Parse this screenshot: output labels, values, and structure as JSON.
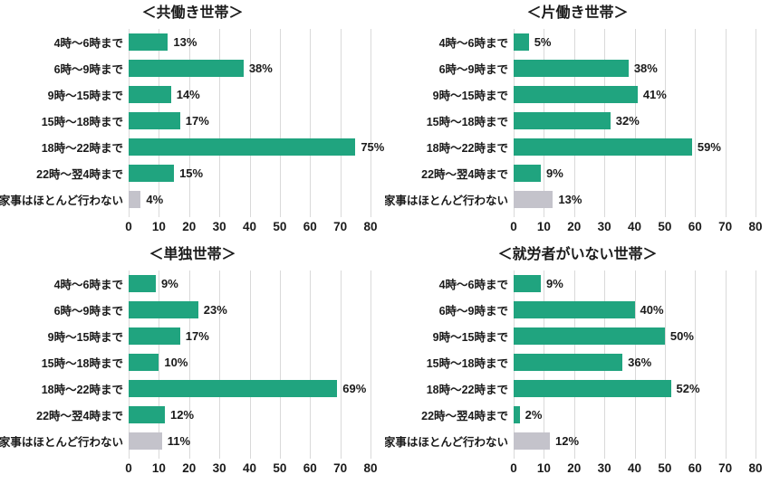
{
  "colors": {
    "bar_green": "#20a47f",
    "bar_gray": "#c4c3cb",
    "gridline": "#d9d9d9",
    "text": "#1a1a1a",
    "background": "#ffffff"
  },
  "axis": {
    "min": 0,
    "max": 80,
    "step": 10,
    "ticks": [
      "0",
      "10",
      "20",
      "30",
      "40",
      "50",
      "60",
      "70",
      "80"
    ]
  },
  "chart_data": [
    {
      "type": "bar",
      "orientation": "horizontal",
      "title": "＜共働き世帯＞",
      "categories": [
        "4時～6時まで",
        "6時～9時まで",
        "9時～15時まで",
        "15時～18時まで",
        "18時～22時まで",
        "22時～翌4時まで",
        "家事はほとんど行わない"
      ],
      "values": [
        13,
        38,
        14,
        17,
        75,
        15,
        4
      ],
      "value_labels": [
        "13%",
        "38%",
        "14%",
        "17%",
        "75%",
        "15%",
        "4%"
      ],
      "xlim": [
        0,
        80
      ],
      "grid": true,
      "muted_indices": [
        6
      ]
    },
    {
      "type": "bar",
      "orientation": "horizontal",
      "title": "＜片働き世帯＞",
      "categories": [
        "4時～6時まで",
        "6時～9時まで",
        "9時～15時まで",
        "15時～18時まで",
        "18時～22時まで",
        "22時～翌4時まで",
        "家事はほとんど行わない"
      ],
      "values": [
        5,
        38,
        41,
        32,
        59,
        9,
        13
      ],
      "value_labels": [
        "5%",
        "38%",
        "41%",
        "32%",
        "59%",
        "9%",
        "13%"
      ],
      "xlim": [
        0,
        80
      ],
      "grid": true,
      "muted_indices": [
        6
      ]
    },
    {
      "type": "bar",
      "orientation": "horizontal",
      "title": "＜単独世帯＞",
      "categories": [
        "4時～6時まで",
        "6時～9時まで",
        "9時～15時まで",
        "15時～18時まで",
        "18時～22時まで",
        "22時～翌4時まで",
        "家事はほとんど行わない"
      ],
      "values": [
        9,
        23,
        17,
        10,
        69,
        12,
        11
      ],
      "value_labels": [
        "9%",
        "23%",
        "17%",
        "10%",
        "69%",
        "12%",
        "11%"
      ],
      "xlim": [
        0,
        80
      ],
      "grid": true,
      "muted_indices": [
        6
      ]
    },
    {
      "type": "bar",
      "orientation": "horizontal",
      "title": "＜就労者がいない世帯＞",
      "categories": [
        "4時～6時まで",
        "6時～9時まで",
        "9時～15時まで",
        "15時～18時まで",
        "18時～22時まで",
        "22時～翌4時まで",
        "家事はほとんど行わない"
      ],
      "values": [
        9,
        40,
        50,
        36,
        52,
        2,
        12
      ],
      "value_labels": [
        "9%",
        "40%",
        "50%",
        "36%",
        "52%",
        "2%",
        "12%"
      ],
      "xlim": [
        0,
        80
      ],
      "grid": true,
      "muted_indices": [
        6
      ]
    }
  ]
}
